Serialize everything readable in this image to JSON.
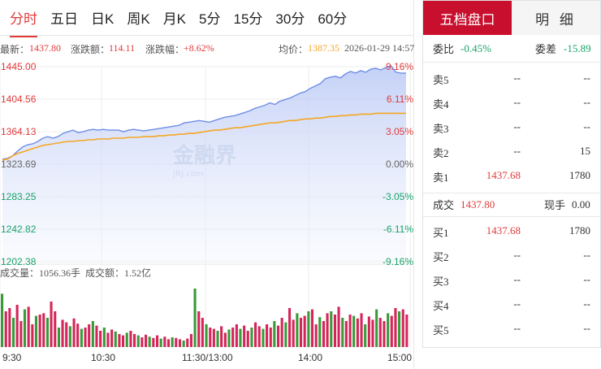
{
  "tabs": [
    "分时",
    "五日",
    "日K",
    "周K",
    "月K",
    "5分",
    "15分",
    "30分",
    "60分"
  ],
  "info": {
    "latest_label": "最新：",
    "latest_value": "1437.80",
    "change_label": "涨跌额：",
    "change_value": "114.11",
    "pct_label": "涨跌幅：",
    "pct_value": "+8.62%",
    "avg_label": "均价：",
    "avg_value": "1387.35",
    "datetime": "2026-01-29 14:57"
  },
  "chart_data": {
    "type": "line",
    "y_left_ticks": [
      "1445.00",
      "1404.56",
      "1364.13",
      "1323.69",
      "1283.25",
      "1242.82",
      "1202.38"
    ],
    "y_right_ticks": [
      "9.16%",
      "6.11%",
      "3.05%",
      "0.00%",
      "-3.05%",
      "-6.11%",
      "-9.16%"
    ],
    "ylim": [
      1202.38,
      1445.0
    ],
    "prev_close": 1323.69,
    "x_ticks": [
      "9:30",
      "10:30",
      "11:30/13:00",
      "14:00",
      "15:00"
    ],
    "series": [
      {
        "values": [
          1330,
          1331,
          1334,
          1340,
          1345,
          1348,
          1349,
          1352,
          1356,
          1358,
          1356,
          1358,
          1362,
          1364,
          1366,
          1363,
          1364,
          1366,
          1367,
          1366,
          1367,
          1366,
          1366,
          1366,
          1364,
          1366,
          1367,
          1366,
          1365,
          1366,
          1367,
          1368,
          1369,
          1370,
          1371,
          1372,
          1375,
          1376,
          1377,
          1378,
          1377,
          1376,
          1378,
          1380,
          1382,
          1383,
          1384,
          1386,
          1388,
          1390,
          1393,
          1395,
          1397,
          1400,
          1398,
          1402,
          1404,
          1406,
          1409,
          1412,
          1414,
          1418,
          1421,
          1424,
          1430,
          1432,
          1433,
          1431,
          1436,
          1439,
          1437,
          1440,
          1438,
          1442,
          1443,
          1441,
          1444,
          1446,
          1438,
          1437,
          1437
        ]
      },
      {
        "values": [
          1329,
          1330,
          1334,
          1337,
          1339,
          1341,
          1343,
          1345,
          1347,
          1348,
          1349,
          1350,
          1351,
          1352,
          1352,
          1353,
          1353,
          1354,
          1354,
          1355,
          1355,
          1355,
          1356,
          1356,
          1356,
          1357,
          1357,
          1357,
          1358,
          1358,
          1358,
          1359,
          1359,
          1360,
          1360,
          1361,
          1361,
          1362,
          1362,
          1363,
          1364,
          1365,
          1366,
          1366,
          1367,
          1368,
          1369,
          1369,
          1370,
          1371,
          1372,
          1373,
          1374,
          1375,
          1375,
          1376,
          1377,
          1378,
          1378,
          1379,
          1380,
          1380,
          1381,
          1381,
          1382,
          1383,
          1383,
          1384,
          1384,
          1385,
          1385,
          1386,
          1386,
          1386,
          1387,
          1387,
          1387,
          1387,
          1387,
          1387,
          1387
        ]
      }
    ]
  },
  "volume": {
    "vol_label": "成交量：",
    "vol_value": "1056.36手",
    "amt_label": "成交额：",
    "amt_value": "1.52亿",
    "bars": [
      0.82,
      0.55,
      0.6,
      0.45,
      0.65,
      0.4,
      0.58,
      0.62,
      0.35,
      0.48,
      0.5,
      0.52,
      0.45,
      0.7,
      0.55,
      0.3,
      0.42,
      0.38,
      0.32,
      0.44,
      0.36,
      0.28,
      0.3,
      0.35,
      0.4,
      0.33,
      0.25,
      0.3,
      0.22,
      0.27,
      0.24,
      0.2,
      0.18,
      0.22,
      0.25,
      0.2,
      0.18,
      0.15,
      0.19,
      0.16,
      0.14,
      0.18,
      0.13,
      0.16,
      0.12,
      0.15,
      0.14,
      0.12,
      0.1,
      0.13,
      0.2,
      0.9,
      0.55,
      0.45,
      0.35,
      0.3,
      0.28,
      0.25,
      0.32,
      0.22,
      0.27,
      0.3,
      0.35,
      0.28,
      0.33,
      0.25,
      0.3,
      0.38,
      0.32,
      0.28,
      0.35,
      0.3,
      0.4,
      0.33,
      0.45,
      0.38,
      0.6,
      0.42,
      0.52,
      0.45,
      0.48,
      0.55,
      0.58,
      0.35,
      0.46,
      0.4,
      0.52,
      0.55,
      0.5,
      0.62,
      0.45,
      0.4,
      0.5,
      0.48,
      0.44,
      0.52,
      0.35,
      0.47,
      0.42,
      0.58,
      0.45,
      0.4,
      0.52,
      0.48,
      0.6,
      0.55,
      0.58,
      0.5
    ]
  },
  "orderbook": {
    "tabs": [
      "五档盘口",
      "明 细"
    ],
    "weibi_label": "委比",
    "weibi_value": "-0.45%",
    "weicha_label": "委差",
    "weicha_value": "-15.89",
    "asks": [
      {
        "label": "卖5",
        "price": "--",
        "vol": "--"
      },
      {
        "label": "卖4",
        "price": "--",
        "vol": "--"
      },
      {
        "label": "卖3",
        "price": "--",
        "vol": "--"
      },
      {
        "label": "卖2",
        "price": "--",
        "vol": "15"
      },
      {
        "label": "卖1",
        "price": "1437.68",
        "vol": "1780"
      }
    ],
    "deal_label": "成交",
    "deal_value": "1437.80",
    "hand_label": "现手",
    "hand_value": "0.00",
    "bids": [
      {
        "label": "买1",
        "price": "1437.68",
        "vol": "1780"
      },
      {
        "label": "买2",
        "price": "--",
        "vol": "--"
      },
      {
        "label": "买3",
        "price": "--",
        "vol": "--"
      },
      {
        "label": "买4",
        "price": "--",
        "vol": "--"
      },
      {
        "label": "买5",
        "price": "--",
        "vol": "--"
      }
    ]
  },
  "colors": {
    "up": "#e13a3a",
    "down": "#1aa36b",
    "price_line": "#6e8ee6",
    "avg_line": "#f5a623",
    "brand": "#c8102e"
  }
}
